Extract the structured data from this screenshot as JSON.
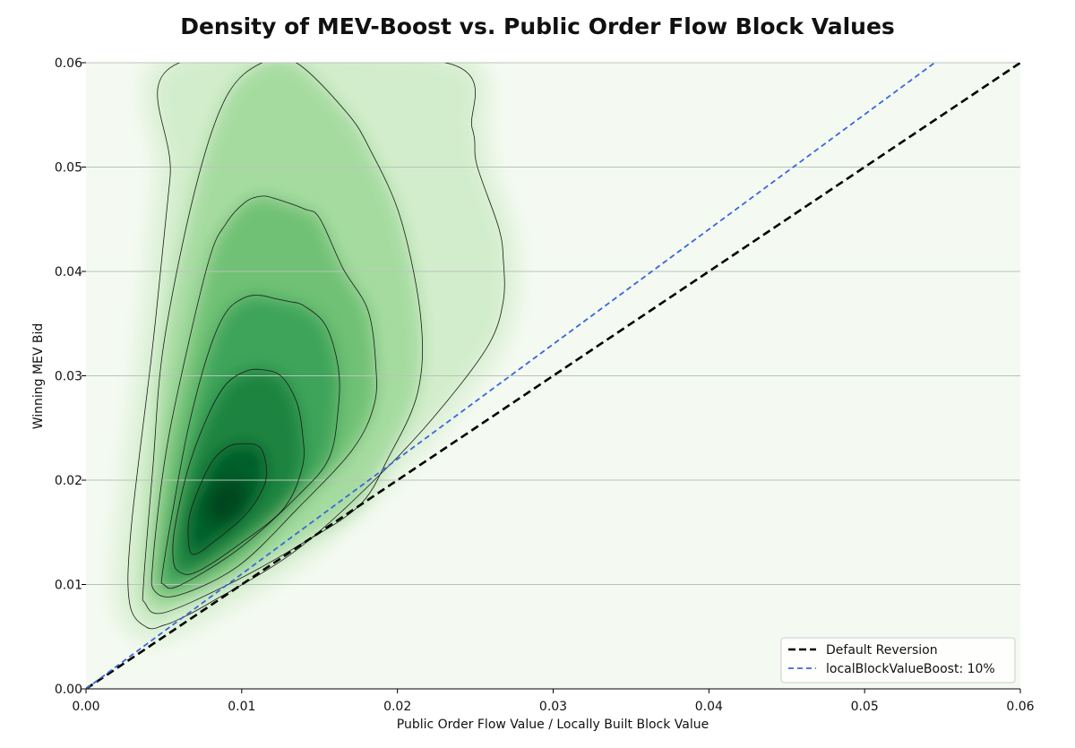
{
  "chart_data": {
    "type": "heatmap",
    "subtype": "kde-density-contour",
    "title": "Density of MEV-Boost vs. Public Order Flow Block Values",
    "xlabel": "Public Order Flow Value / Locally Built Block Value",
    "ylabel": "Winning MEV Bid",
    "xlim": [
      0,
      0.06
    ],
    "ylim": [
      0,
      0.06
    ],
    "xticks": [
      "0.00",
      "0.01",
      "0.02",
      "0.03",
      "0.04",
      "0.05",
      "0.06"
    ],
    "yticks": [
      "0.00",
      "0.01",
      "0.02",
      "0.03",
      "0.04",
      "0.05",
      "0.06"
    ],
    "grid": "horizontal",
    "colormap": "Greens",
    "density_peak": [
      0.009,
      0.018
    ],
    "contour_levels": [
      {
        "fill": "#d2edcb",
        "points": [
          [
            0.006,
            0.06
          ],
          [
            0.0054,
            0.049
          ],
          [
            0.0043,
            0.0331
          ],
          [
            0.0029,
            0.0154
          ],
          [
            0.0028,
            0.0082
          ],
          [
            0.0039,
            0.0059
          ],
          [
            0.005,
            0.0061
          ],
          [
            0.006,
            0.0067
          ],
          [
            0.0079,
            0.0082
          ],
          [
            0.0136,
            0.0134
          ],
          [
            0.0194,
            0.0213
          ],
          [
            0.0232,
            0.0276
          ],
          [
            0.0259,
            0.0331
          ],
          [
            0.0268,
            0.0372
          ],
          [
            0.0268,
            0.0411
          ],
          [
            0.0265,
            0.0442
          ],
          [
            0.0251,
            0.0502
          ],
          [
            0.0248,
            0.0537
          ],
          [
            0.0231,
            0.06
          ]
        ]
      },
      {
        "fill": "#a6dba0",
        "points": [
          [
            0.0113,
            0.06
          ],
          [
            0.009,
            0.0567
          ],
          [
            0.007,
            0.0478
          ],
          [
            0.005,
            0.0331
          ],
          [
            0.0043,
            0.0213
          ],
          [
            0.0037,
            0.0102
          ],
          [
            0.0038,
            0.0082
          ],
          [
            0.005,
            0.0073
          ],
          [
            0.0094,
            0.0102
          ],
          [
            0.0135,
            0.0136
          ],
          [
            0.0175,
            0.0175
          ],
          [
            0.0194,
            0.0221
          ],
          [
            0.0213,
            0.0284
          ],
          [
            0.0215,
            0.0355
          ],
          [
            0.0202,
            0.0451
          ],
          [
            0.0182,
            0.0518
          ],
          [
            0.0167,
            0.0553
          ],
          [
            0.0135,
            0.06
          ]
        ]
      },
      {
        "fill": "#6fc174",
        "points": [
          [
            0.0112,
            0.0472
          ],
          [
            0.0121,
            0.047
          ],
          [
            0.014,
            0.046
          ],
          [
            0.015,
            0.0451
          ],
          [
            0.0165,
            0.0403
          ],
          [
            0.0181,
            0.0363
          ],
          [
            0.0186,
            0.0312
          ],
          [
            0.0185,
            0.0272
          ],
          [
            0.0171,
            0.0229
          ],
          [
            0.0136,
            0.0173
          ],
          [
            0.0098,
            0.0118
          ],
          [
            0.006,
            0.009
          ],
          [
            0.0044,
            0.0094
          ],
          [
            0.0043,
            0.0122
          ],
          [
            0.005,
            0.0213
          ],
          [
            0.006,
            0.0292
          ],
          [
            0.0079,
            0.0411
          ],
          [
            0.009,
            0.0446
          ],
          [
            0.0102,
            0.0466
          ]
        ]
      },
      {
        "fill": "#3da45a",
        "points": [
          [
            0.0112,
            0.0377
          ],
          [
            0.0121,
            0.0374
          ],
          [
            0.0131,
            0.0371
          ],
          [
            0.014,
            0.0367
          ],
          [
            0.0154,
            0.0348
          ],
          [
            0.0162,
            0.0308
          ],
          [
            0.0162,
            0.0269
          ],
          [
            0.0156,
            0.0221
          ],
          [
            0.0136,
            0.0185
          ],
          [
            0.0098,
            0.0134
          ],
          [
            0.006,
            0.0099
          ],
          [
            0.005,
            0.01
          ],
          [
            0.0049,
            0.011
          ],
          [
            0.0056,
            0.0173
          ],
          [
            0.0066,
            0.0252
          ],
          [
            0.0079,
            0.0324
          ],
          [
            0.009,
            0.0361
          ],
          [
            0.0102,
            0.0375
          ]
        ]
      },
      {
        "fill": "#1b843f",
        "points": [
          [
            0.0112,
            0.0306
          ],
          [
            0.0125,
            0.03
          ],
          [
            0.0135,
            0.0276
          ],
          [
            0.0139,
            0.0245
          ],
          [
            0.0139,
            0.0213
          ],
          [
            0.0127,
            0.0173
          ],
          [
            0.0098,
            0.0138
          ],
          [
            0.0071,
            0.0112
          ],
          [
            0.006,
            0.0112
          ],
          [
            0.0056,
            0.0124
          ],
          [
            0.0057,
            0.0154
          ],
          [
            0.0066,
            0.0213
          ],
          [
            0.0079,
            0.0264
          ],
          [
            0.009,
            0.0292
          ],
          [
            0.0102,
            0.0304
          ]
        ]
      },
      {
        "fill": "#055f2a",
        "points": [
          [
            0.0101,
            0.0235
          ],
          [
            0.0112,
            0.0231
          ],
          [
            0.0116,
            0.0209
          ],
          [
            0.0113,
            0.019
          ],
          [
            0.0102,
            0.0166
          ],
          [
            0.0083,
            0.0142
          ],
          [
            0.007,
            0.0129
          ],
          [
            0.0066,
            0.0138
          ],
          [
            0.0067,
            0.0169
          ],
          [
            0.0079,
            0.0213
          ],
          [
            0.009,
            0.0231
          ]
        ]
      }
    ],
    "series": [
      {
        "name": "Default Reversion",
        "type": "line",
        "slope": 1.0,
        "x": [
          0,
          0.06
        ],
        "y": [
          0,
          0.06
        ],
        "color": "#000000",
        "style": "dashed"
      },
      {
        "name": "localBlockValueBoost: 10%",
        "type": "line",
        "slope": 1.1,
        "x": [
          0,
          0.0545
        ],
        "y": [
          0,
          0.06
        ],
        "color": "#3a66e0",
        "style": "dashed"
      }
    ],
    "legend": "bottom-right",
    "background_color": "#f4faf1"
  }
}
